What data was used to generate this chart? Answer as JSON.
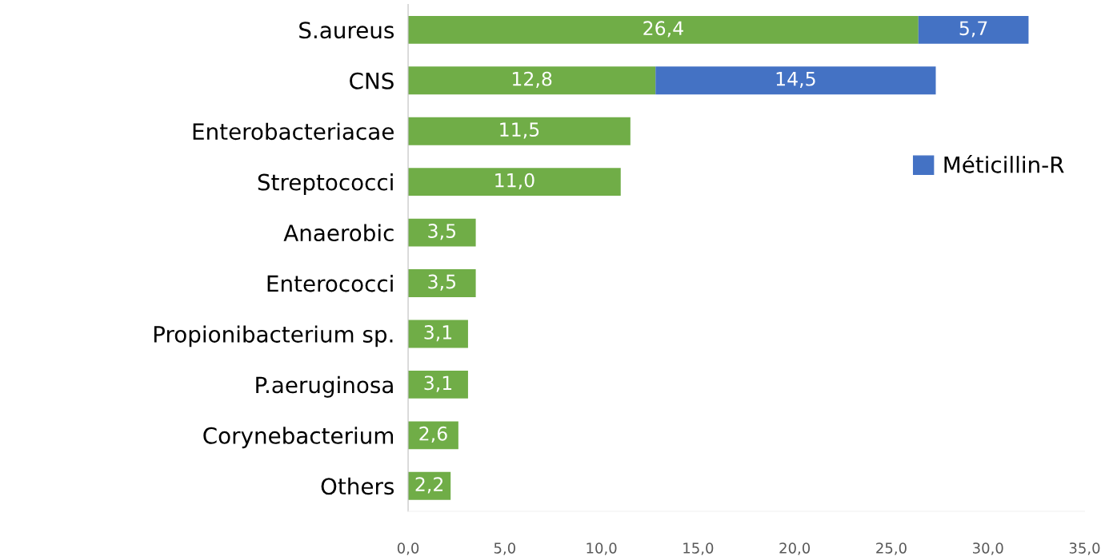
{
  "chart_data": {
    "type": "bar",
    "orientation": "horizontal",
    "stacked": true,
    "categories": [
      "S.aureus",
      "CNS",
      "Enterobacteriacae",
      "Streptococci",
      "Anaerobic",
      "Enterococci",
      "Propionibacterium sp.",
      "P.aeruginosa",
      "Corynebacterium",
      "Others"
    ],
    "series": [
      {
        "color": "#70ad47",
        "values": [
          26.4,
          12.8,
          11.5,
          11.0,
          3.5,
          3.5,
          3.1,
          3.1,
          2.6,
          2.2
        ],
        "value_labels": [
          "26,4",
          "12,8",
          "11,5",
          "11,0",
          "3,5",
          "3,5",
          "3,1",
          "3,1",
          "2,6",
          "2,2"
        ]
      },
      {
        "name": "Méticillin-R",
        "color": "#4472c4",
        "values": [
          5.7,
          14.5,
          null,
          null,
          null,
          null,
          null,
          null,
          null,
          null
        ],
        "value_labels": [
          "5,7",
          "14,5",
          null,
          null,
          null,
          null,
          null,
          null,
          null,
          null
        ]
      }
    ],
    "xlim": [
      0,
      35
    ],
    "xticks": [
      {
        "value": 0,
        "label": "0,0"
      },
      {
        "value": 5,
        "label": "5,0"
      },
      {
        "value": 10,
        "label": "10,0"
      },
      {
        "value": 15,
        "label": "15,0"
      },
      {
        "value": 20,
        "label": "20,0"
      },
      {
        "value": 25,
        "label": "25,0"
      },
      {
        "value": 30,
        "label": "30,0"
      },
      {
        "value": 35,
        "label": "35,0"
      }
    ],
    "grid": false,
    "legend": "right"
  }
}
